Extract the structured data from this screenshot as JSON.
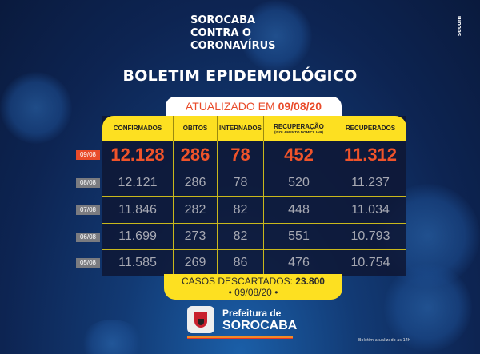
{
  "header": {
    "title_lines": [
      "SOROCABA",
      "CONTRA O",
      "CORONAVÍRUS"
    ],
    "secom": "secom"
  },
  "main_title": "BOLETIM EPIDEMIOLÓGICO",
  "banner": {
    "prefix": "ATUALIZADO EM",
    "date": "09/08/20"
  },
  "columns": [
    {
      "label": "CONFIRMADOS",
      "sub": ""
    },
    {
      "label": "ÓBITOS",
      "sub": ""
    },
    {
      "label": "INTERNADOS",
      "sub": ""
    },
    {
      "label": "RECUPERAÇÃO",
      "sub": "(ISOLAMENTO DOMICILIAR)"
    },
    {
      "label": "RECUPERADOS",
      "sub": ""
    }
  ],
  "rows": [
    {
      "date": "09/08",
      "values": [
        "12.128",
        "286",
        "78",
        "452",
        "11.312"
      ]
    },
    {
      "date": "08/08",
      "values": [
        "12.121",
        "286",
        "78",
        "520",
        "11.237"
      ]
    },
    {
      "date": "07/08",
      "values": [
        "11.846",
        "282",
        "82",
        "448",
        "11.034"
      ]
    },
    {
      "date": "06/08",
      "values": [
        "11.699",
        "273",
        "82",
        "551",
        "10.793"
      ]
    },
    {
      "date": "05/08",
      "values": [
        "11.585",
        "269",
        "86",
        "476",
        "10.754"
      ]
    }
  ],
  "footer": {
    "label": "CASOS DESCARTADOS:",
    "value": "23.800",
    "date": "• 09/08/20 •"
  },
  "logo": {
    "line1": "Prefeitura de",
    "line2": "SOROCABA"
  },
  "note": "Boletim atualizado às 14h",
  "colors": {
    "accent": "#fde021",
    "highlight": "#f0532a",
    "background": "#0d2452"
  }
}
